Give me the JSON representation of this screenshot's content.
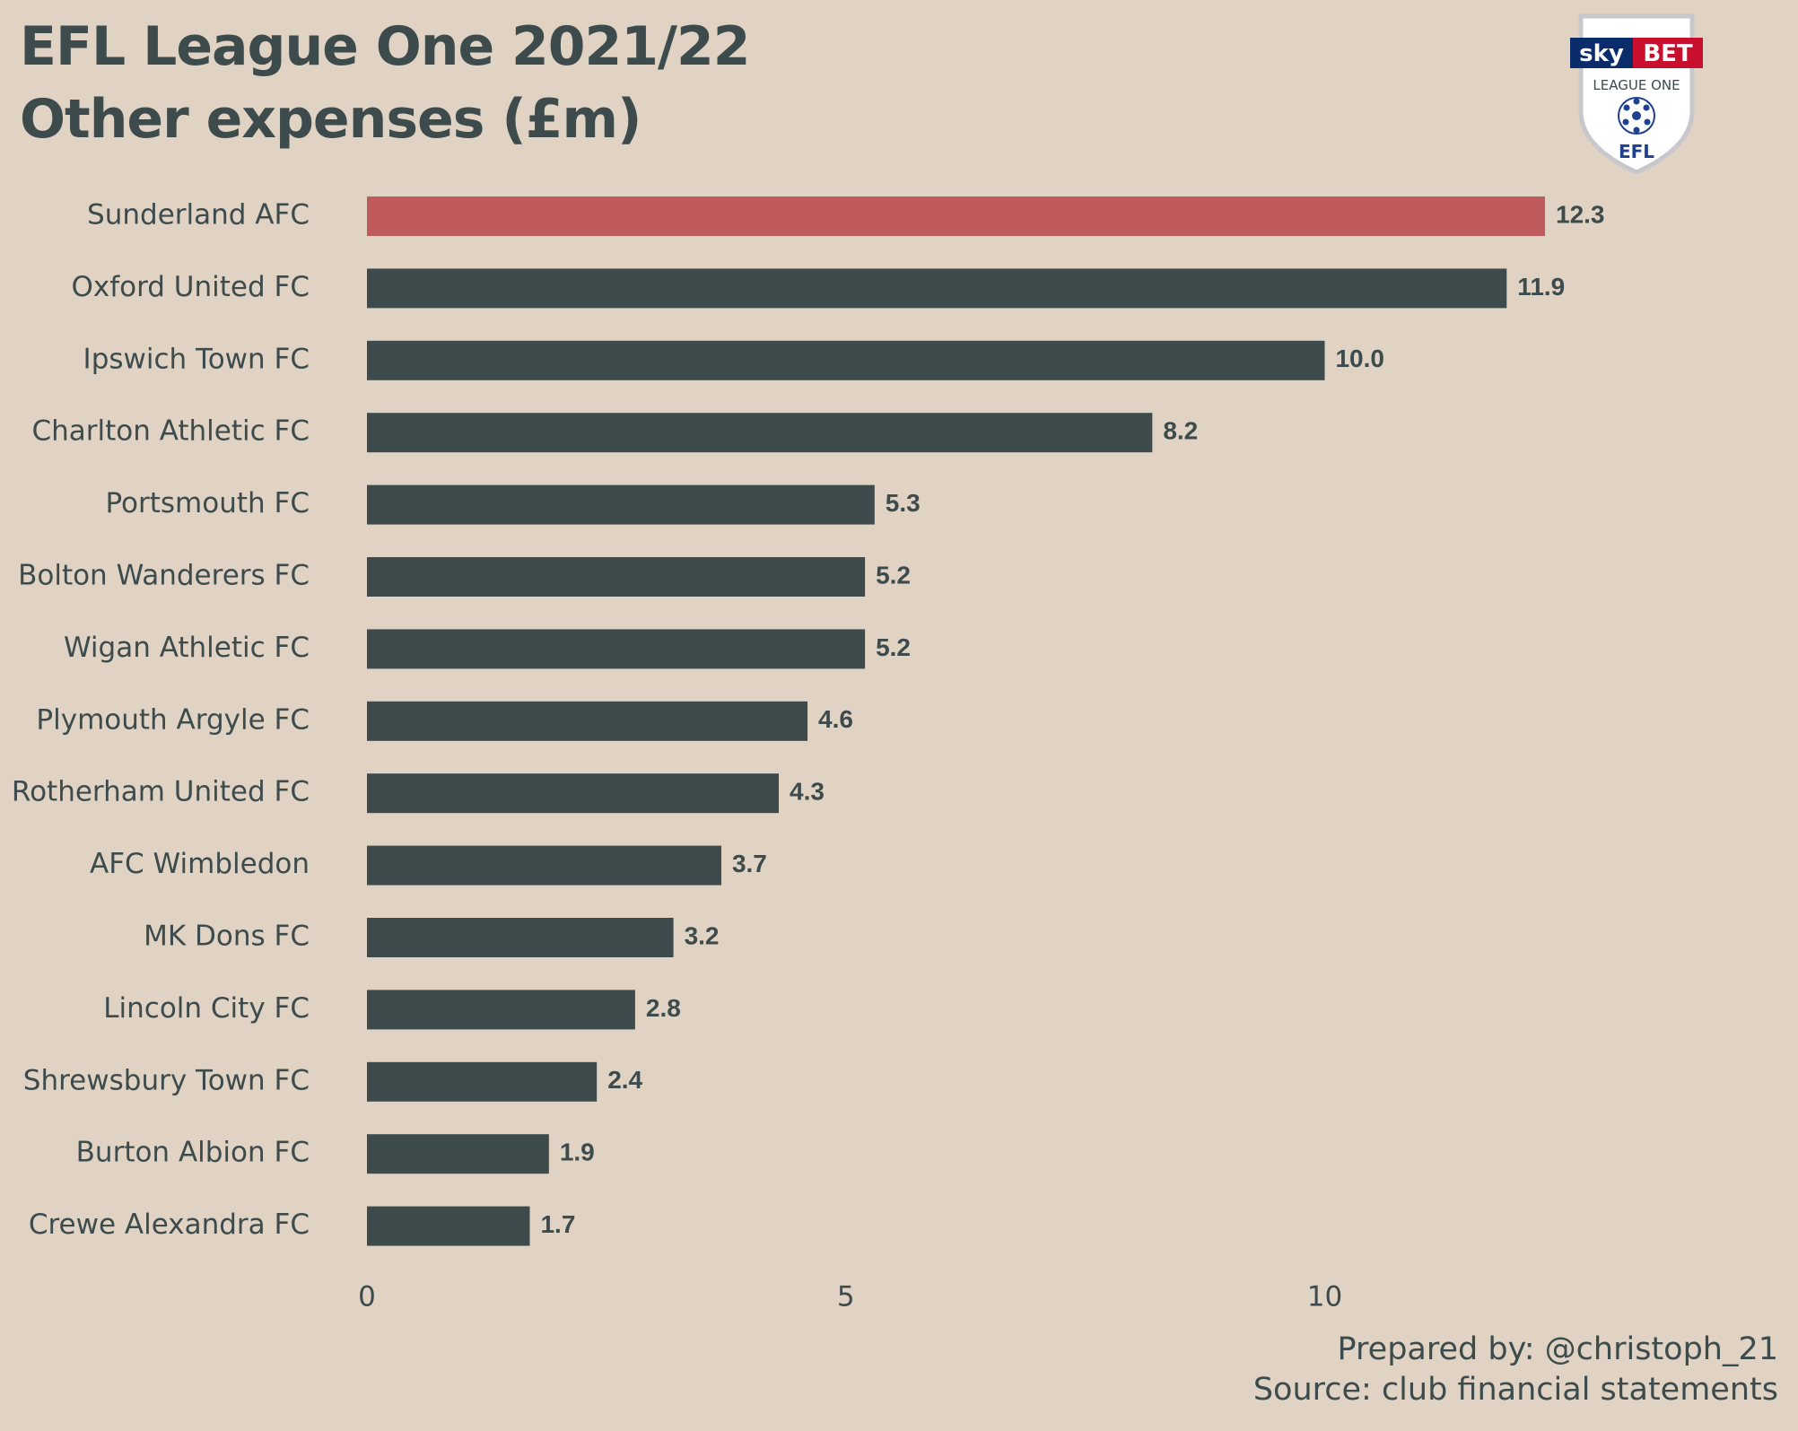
{
  "title_lines": [
    "EFL League One 2021/22",
    "Other expenses (£m)"
  ],
  "footer": {
    "prepared_by": "Prepared by: @christoph_21",
    "source": "Source: club financial statements"
  },
  "logo": {
    "sky": "sky",
    "bet": "BET",
    "league": "LEAGUE ONE",
    "efl": "EFL"
  },
  "colors": {
    "highlight": "#bf5b5c",
    "bar": "#3d4b4d",
    "background": "#e0d3c3",
    "text": "#3d4b4d"
  },
  "chart_data": {
    "type": "bar",
    "orientation": "horizontal",
    "title": "EFL League One 2021/22 Other expenses (£m)",
    "categories": [
      "Sunderland AFC",
      "Oxford United FC",
      "Ipswich Town FC",
      "Charlton Athletic FC",
      "Portsmouth FC",
      "Bolton Wanderers FC",
      "Wigan Athletic FC",
      "Plymouth Argyle FC",
      "Rotherham United FC",
      "AFC Wimbledon",
      "MK Dons FC",
      "Lincoln City FC",
      "Shrewsbury Town FC",
      "Burton Albion FC",
      "Crewe Alexandra FC"
    ],
    "values": [
      12.3,
      11.9,
      10.0,
      8.2,
      5.3,
      5.2,
      5.2,
      4.6,
      4.3,
      3.7,
      3.2,
      2.8,
      2.4,
      1.9,
      1.7
    ],
    "value_labels": [
      "12.3",
      "11.9",
      "10.0",
      "8.2",
      "5.3",
      "5.2",
      "5.2",
      "4.6",
      "4.3",
      "3.7",
      "3.2",
      "2.8",
      "2.4",
      "1.9",
      "1.7"
    ],
    "highlight": "Sunderland AFC",
    "x_ticks": [
      0,
      5,
      10
    ],
    "xlim": [
      0,
      12.3
    ],
    "xlabel": "",
    "ylabel": "",
    "grid": false,
    "legend": "none"
  }
}
